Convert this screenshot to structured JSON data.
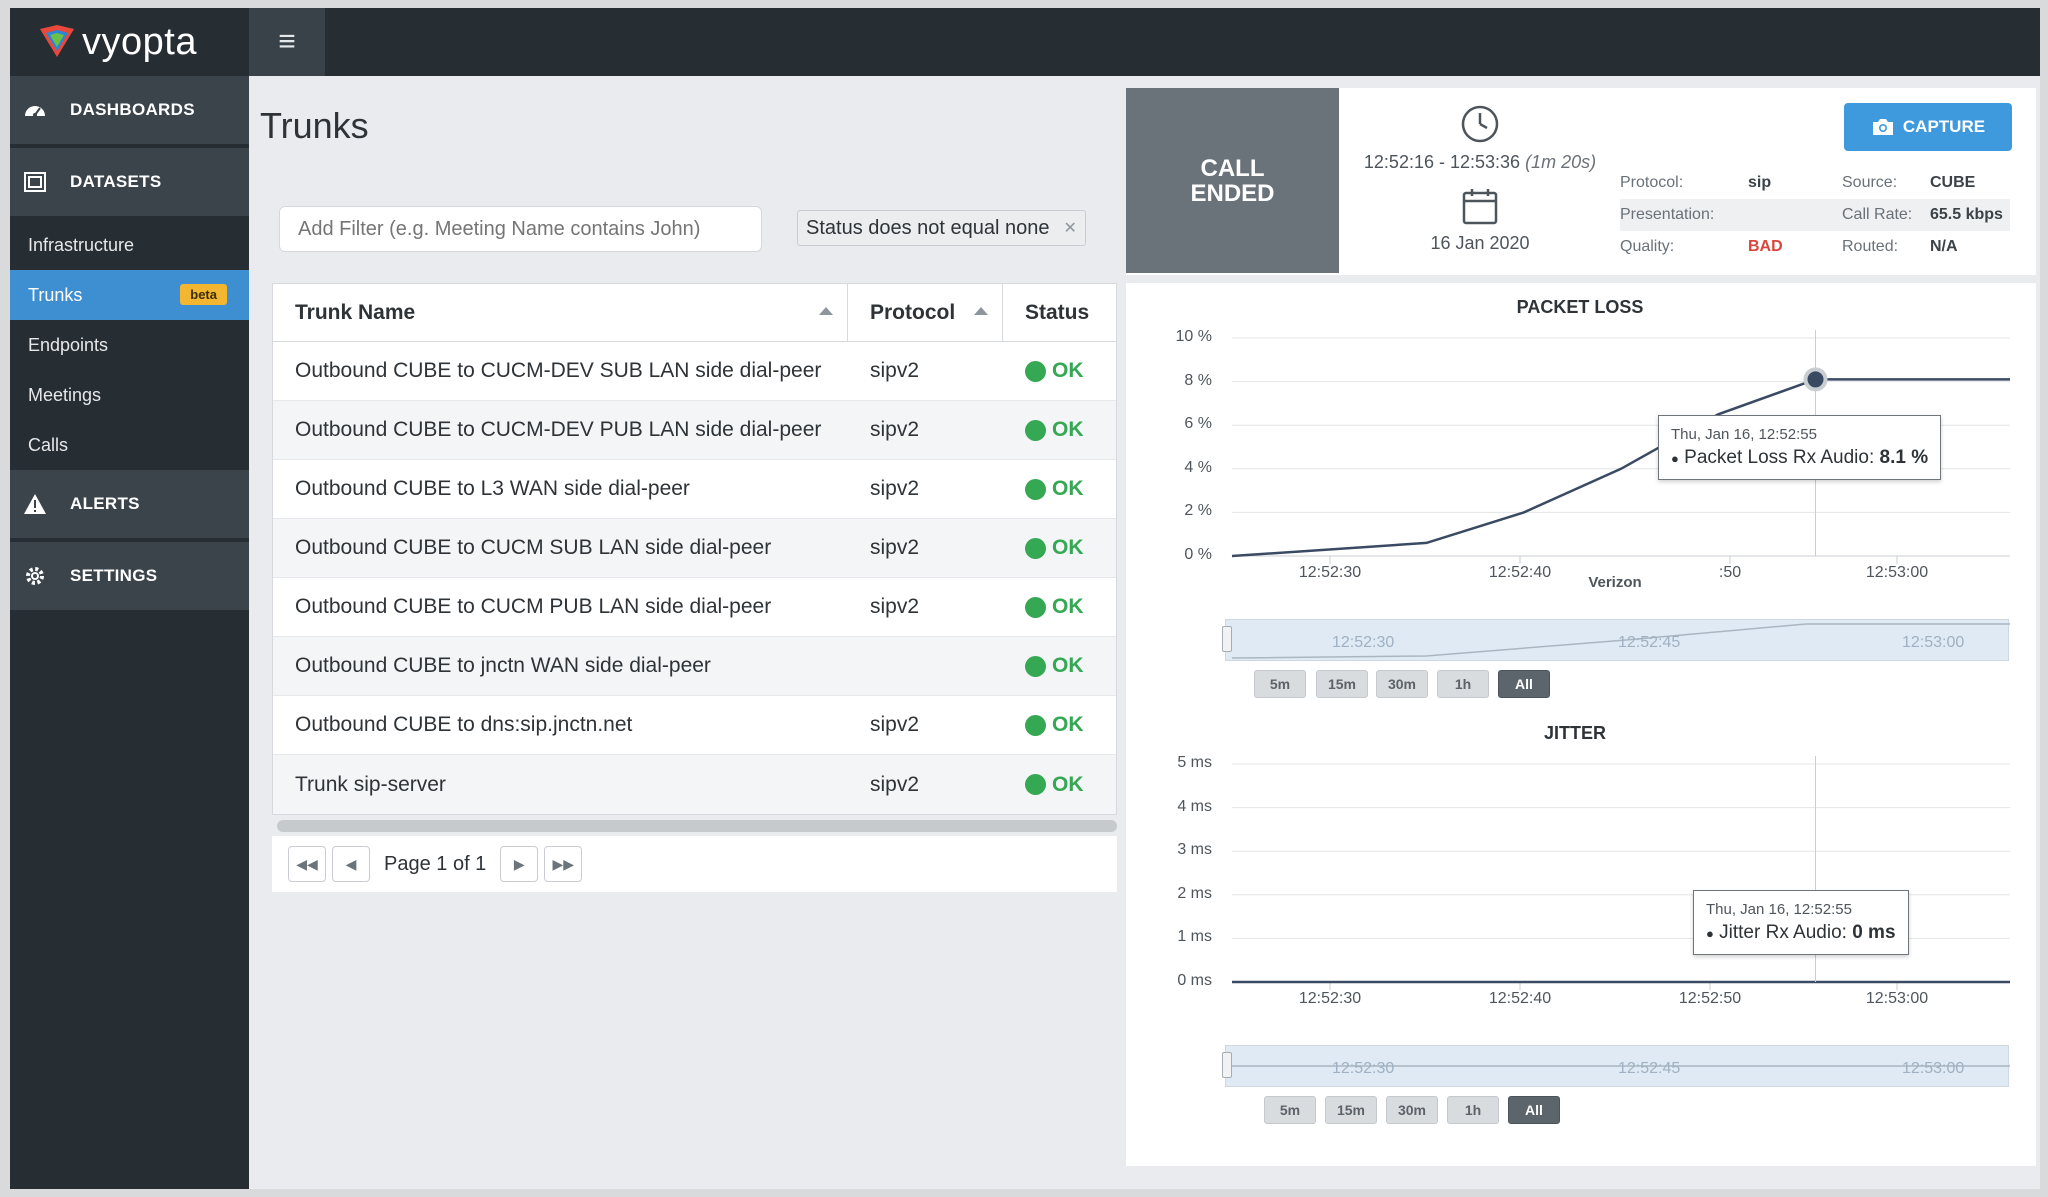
{
  "brand": {
    "name": "vyopta"
  },
  "sidebar": {
    "sections": [
      {
        "label": "DASHBOARDS",
        "icon": "dashboard-gauge-icon"
      },
      {
        "label": "DATASETS",
        "icon": "datasets-icon"
      }
    ],
    "items": [
      {
        "label": "Infrastructure"
      },
      {
        "label": "Trunks",
        "badge": "beta",
        "active": true
      },
      {
        "label": "Endpoints"
      },
      {
        "label": "Meetings"
      },
      {
        "label": "Calls"
      }
    ],
    "lower_sections": [
      {
        "label": "ALERTS",
        "icon": "alert-triangle-icon"
      },
      {
        "label": "SETTINGS",
        "icon": "gear-icon"
      }
    ]
  },
  "page": {
    "title": "Trunks",
    "filter_placeholder": "Add Filter (e.g. Meeting Name contains John)",
    "active_filter": "Status does not equal none"
  },
  "table": {
    "headers": {
      "name": "Trunk Name",
      "protocol": "Protocol",
      "status": "Status"
    },
    "rows": [
      {
        "name": "Outbound CUBE to CUCM-DEV SUB LAN side dial-peer",
        "protocol": "sipv2",
        "status": "OK"
      },
      {
        "name": "Outbound CUBE to CUCM-DEV PUB LAN side dial-peer",
        "protocol": "sipv2",
        "status": "OK"
      },
      {
        "name": "Outbound CUBE to L3 WAN side dial-peer",
        "protocol": "sipv2",
        "status": "OK"
      },
      {
        "name": "Outbound CUBE to CUCM SUB LAN side dial-peer",
        "protocol": "sipv2",
        "status": "OK"
      },
      {
        "name": "Outbound CUBE to CUCM PUB LAN side dial-peer",
        "protocol": "sipv2",
        "status": "OK"
      },
      {
        "name": "Outbound CUBE to jnctn WAN side dial-peer",
        "protocol": "",
        "status": "OK"
      },
      {
        "name": "Outbound CUBE to dns:sip.jnctn.net",
        "protocol": "sipv2",
        "status": "OK"
      },
      {
        "name": "Trunk sip-server",
        "protocol": "sipv2",
        "status": "OK"
      }
    ],
    "pager": {
      "label": "Page 1 of 1"
    }
  },
  "call": {
    "state_line1": "CALL",
    "state_line2": "ENDED",
    "time_range": "12:52:16 - 12:53:36",
    "duration": "(1m 20s)",
    "date": "16 Jan 2020",
    "capture_label": "CAPTURE",
    "meta": {
      "protocol_key": "Protocol:",
      "protocol_val": "sip",
      "source_key": "Source:",
      "source_val": "CUBE",
      "presentation_key": "Presentation:",
      "presentation_val": "",
      "callrate_key": "Call Rate:",
      "callrate_val": "65.5 kbps",
      "quality_key": "Quality:",
      "quality_val": "BAD",
      "routed_key": "Routed:",
      "routed_val": "N/A"
    }
  },
  "colors": {
    "ok": "#34a853",
    "bad": "#d9463b",
    "accent": "#3e99dd",
    "line": "#3b4a63"
  },
  "chart_data": [
    {
      "type": "line",
      "title": "PACKET LOSS",
      "yticks": [
        "10 %",
        "8 %",
        "6 %",
        "4 %",
        "2 %",
        "0 %"
      ],
      "xticks": [
        "12:52:30",
        "12:52:40",
        ":50",
        "12:53:00"
      ],
      "x_overlay_label": "Verizon",
      "ylim": [
        0,
        10
      ],
      "series": [
        {
          "name": "Packet Loss Rx Audio",
          "x": [
            "12:52:25",
            "12:52:35",
            "12:52:40",
            "12:52:45",
            "12:52:50",
            "12:52:55",
            "12:53:00",
            "12:53:05"
          ],
          "y": [
            0.0,
            0.6,
            2.0,
            4.0,
            6.5,
            8.1,
            8.1,
            8.1
          ]
        }
      ],
      "tooltip": {
        "header": "Thu, Jan 16, 12:52:55",
        "label": "Packet Loss Rx Audio:",
        "value": "8.1 %"
      },
      "navigator_ticks": [
        "12:52:30",
        "12:52:45",
        "12:53:00"
      ],
      "range_buttons": [
        "5m",
        "15m",
        "30m",
        "1h",
        "All"
      ],
      "range_selected": "All"
    },
    {
      "type": "line",
      "title": "JITTER",
      "yticks": [
        "5 ms",
        "4 ms",
        "3 ms",
        "2 ms",
        "1 ms",
        "0 ms"
      ],
      "xticks": [
        "12:52:30",
        "12:52:40",
        "12:52:50",
        "12:53:00"
      ],
      "ylim": [
        0,
        5
      ],
      "series": [
        {
          "name": "Jitter Rx Audio",
          "x": [
            "12:52:25",
            "12:53:05"
          ],
          "y": [
            0,
            0
          ]
        }
      ],
      "tooltip": {
        "header": "Thu, Jan 16, 12:52:55",
        "label": "Jitter Rx Audio:",
        "value": "0 ms"
      },
      "navigator_ticks": [
        "12:52:30",
        "12:52:45",
        "12:53:00"
      ],
      "range_buttons": [
        "5m",
        "15m",
        "30m",
        "1h",
        "All"
      ],
      "range_selected": "All"
    }
  ]
}
